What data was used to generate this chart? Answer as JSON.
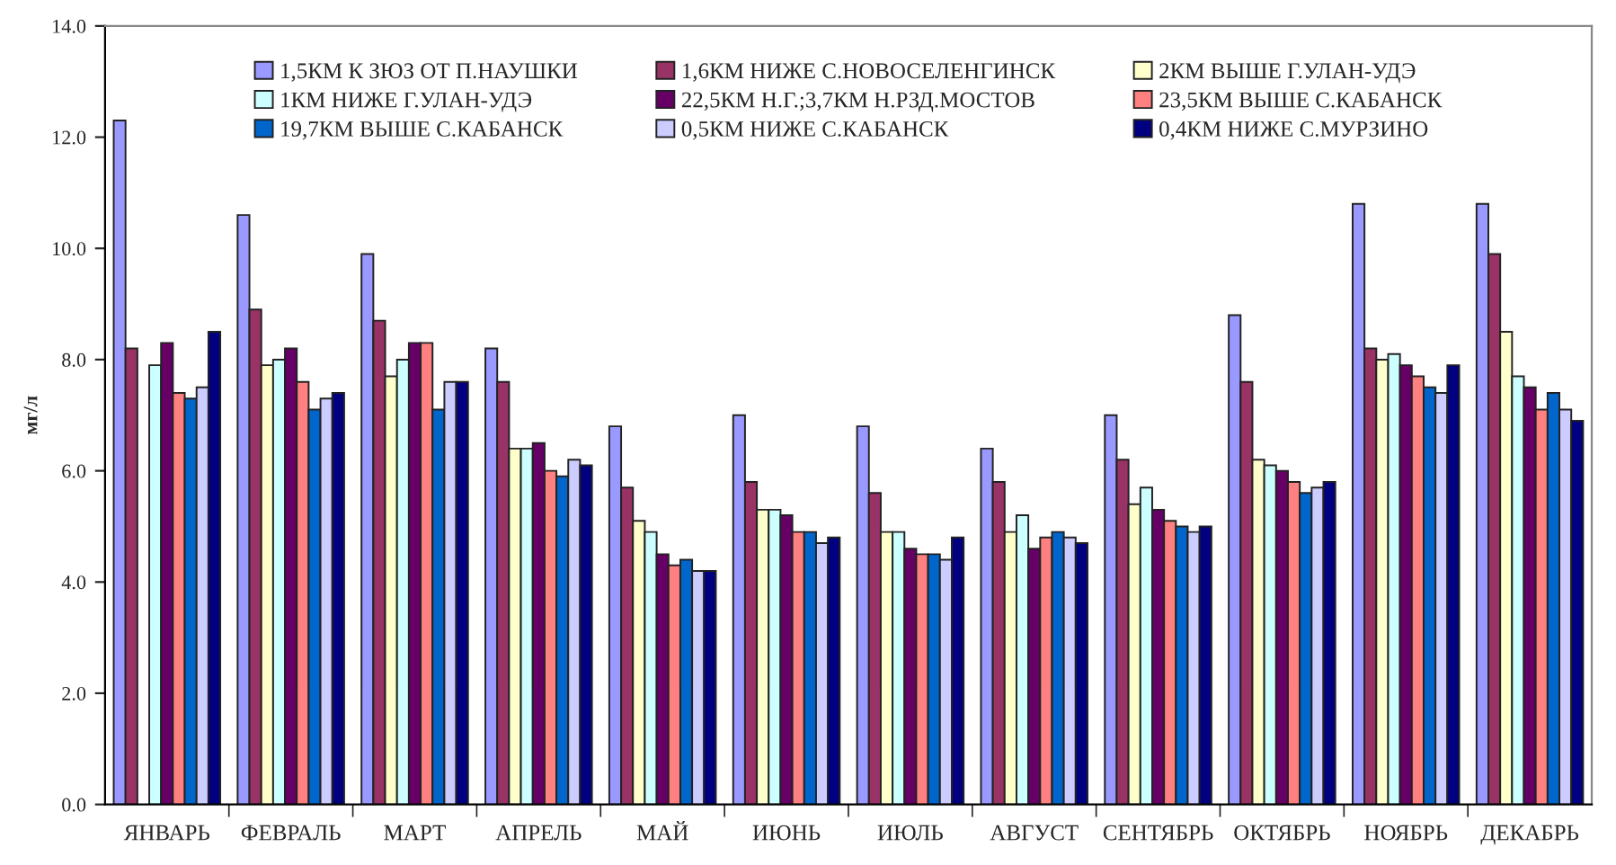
{
  "chart_data": {
    "type": "bar",
    "ylabel": "мг/л",
    "categories": [
      "ЯНВАРЬ",
      "ФЕВРАЛЬ",
      "МАРТ",
      "АПРЕЛЬ",
      "МАЙ",
      "ИЮНЬ",
      "ИЮЛЬ",
      "АВГУСТ",
      "СЕНТЯБРЬ",
      "ОКТЯБРЬ",
      "НОЯБРЬ",
      "ДЕКАБРЬ"
    ],
    "series": [
      {
        "name": "1,5КМ К ЗЮЗ ОТ П.НАУШКИ",
        "color": "#9999ff",
        "values": [
          12.3,
          10.6,
          9.9,
          8.2,
          6.8,
          7.0,
          6.8,
          6.4,
          7.0,
          8.8,
          10.8,
          10.8
        ]
      },
      {
        "name": "1,6КМ НИЖЕ С.НОВОСЕЛЕНГИНСК",
        "color": "#993366",
        "values": [
          8.2,
          8.9,
          8.7,
          7.6,
          5.7,
          5.8,
          5.6,
          5.8,
          6.2,
          7.6,
          8.2,
          9.9
        ]
      },
      {
        "name": "2КМ ВЫШЕ Г.УЛАН-УДЭ",
        "color": "#ffffcc",
        "values": [
          null,
          7.9,
          7.7,
          6.4,
          5.1,
          5.3,
          4.9,
          4.9,
          5.4,
          6.2,
          8.0,
          8.5
        ]
      },
      {
        "name": "1КМ НИЖЕ Г.УЛАН-УДЭ",
        "color": "#ccffff",
        "values": [
          7.9,
          8.0,
          8.0,
          6.4,
          4.9,
          5.3,
          4.9,
          5.2,
          5.7,
          6.1,
          8.1,
          7.7
        ]
      },
      {
        "name": "22,5КМ Н.Г.;3,7КМ Н.РЗД.МОСТОВ",
        "color": "#660066",
        "values": [
          8.3,
          8.2,
          8.3,
          6.5,
          4.5,
          5.2,
          4.6,
          4.6,
          5.3,
          6.0,
          7.9,
          7.5
        ]
      },
      {
        "name": "23,5КМ ВЫШЕ С.КАБАНСК",
        "color": "#ff8080",
        "values": [
          7.4,
          7.6,
          8.3,
          6.0,
          4.3,
          4.9,
          4.5,
          4.8,
          5.1,
          5.8,
          7.7,
          7.1
        ]
      },
      {
        "name": "19,7КМ ВЫШЕ С.КАБАНСК",
        "color": "#0066cc",
        "values": [
          7.3,
          7.1,
          7.1,
          5.9,
          4.4,
          4.9,
          4.5,
          4.9,
          5.0,
          5.6,
          7.5,
          7.4
        ]
      },
      {
        "name": "0,5КМ НИЖЕ С.КАБАНСК",
        "color": "#ccccff",
        "values": [
          7.5,
          7.3,
          7.6,
          6.2,
          4.2,
          4.7,
          4.4,
          4.8,
          4.9,
          5.7,
          7.4,
          7.1
        ]
      },
      {
        "name": "0,4КМ НИЖЕ С.МУРЗИНО",
        "color": "#000080",
        "values": [
          8.5,
          7.4,
          7.6,
          6.1,
          4.2,
          4.8,
          4.8,
          4.7,
          5.0,
          5.8,
          7.9,
          6.9
        ]
      }
    ],
    "ylim": [
      0,
      14
    ],
    "yticks": [
      {
        "value": 0,
        "label": "0.0"
      },
      {
        "value": 2,
        "label": "2.0"
      },
      {
        "value": 4,
        "label": "4.0"
      },
      {
        "value": 6,
        "label": "6.0"
      },
      {
        "value": 8,
        "label": "8.0"
      },
      {
        "value": 10,
        "label": "10.0"
      },
      {
        "value": 12,
        "label": "12.0"
      },
      {
        "value": 14,
        "label": "14.0"
      }
    ],
    "grid": false,
    "legend": "top"
  }
}
